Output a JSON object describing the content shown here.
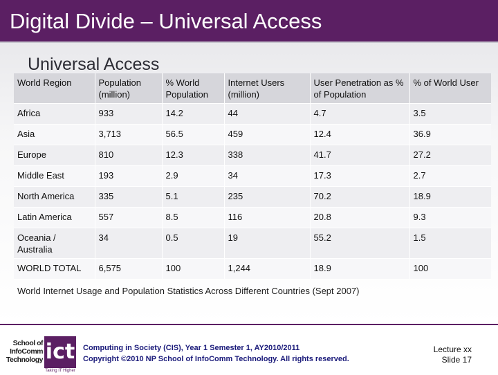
{
  "slide": {
    "title": "Digital Divide – Universal Access",
    "subtitle": "Universal Access"
  },
  "table": {
    "headers": [
      "World Region",
      "Population (million)",
      "% World Population",
      "Internet Users (million)",
      "User Penetration as % of Population",
      "% of World User"
    ],
    "rows": [
      [
        "Africa",
        "933",
        "14.2",
        "44",
        "4.7",
        "3.5"
      ],
      [
        "Asia",
        "3,713",
        "56.5",
        "459",
        "12.4",
        "36.9"
      ],
      [
        "Europe",
        "810",
        "12.3",
        "338",
        "41.7",
        "27.2"
      ],
      [
        "Middle East",
        "193",
        "2.9",
        "34",
        "17.3",
        "2.7"
      ],
      [
        "North America",
        "335",
        "5.1",
        "235",
        "70.2",
        "18.9"
      ],
      [
        "Latin America",
        "557",
        "8.5",
        "116",
        "20.8",
        "9.3"
      ],
      [
        "Oceania / Australia",
        "34",
        "0.5",
        "19",
        "55.2",
        "1.5"
      ],
      [
        "WORLD TOTAL",
        "6,575",
        "100",
        "1,244",
        "18.9",
        "100"
      ]
    ],
    "caption": "World Internet Usage and Population Statistics Across Different Countries (Sept 2007)"
  },
  "footer": {
    "logo_text": [
      "School of",
      "InfoComm",
      "Technology"
    ],
    "logo_mark": "ict",
    "logo_tagline": "Taking IT Higher",
    "line1": "Computing in Society (CIS), Year 1 Semester 1, AY2010/2011",
    "line2": "Copyright ©2010 NP School of InfoComm Technology.  All rights reserved.",
    "lecture": "Lecture  xx",
    "slide_number": "Slide 17"
  },
  "colors": {
    "brand": "#5b1f63",
    "footer_text": "#1a1a7a"
  }
}
